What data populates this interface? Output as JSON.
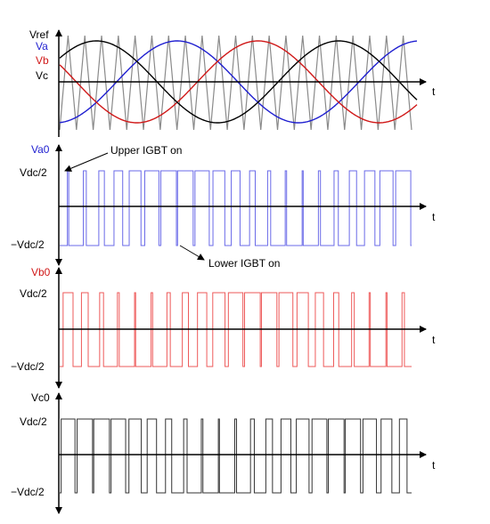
{
  "reference_plot": {
    "labels": {
      "vref": "Vref",
      "va": "Va",
      "vb": "Vb",
      "vc": "Vc",
      "time_axis": "t"
    },
    "colors": {
      "va": "#1f1fd0",
      "vb": "#d01818",
      "vc": "#000000",
      "carrier": "#8a8a8a"
    }
  },
  "va0_plot": {
    "labels": {
      "title": "Va0",
      "high": "Vdc/2",
      "low": "−Vdc/2",
      "time_axis": "t"
    },
    "color": "#6a6ae8"
  },
  "annotations": {
    "upper": "Upper IGBT on",
    "lower": "Lower IGBT on"
  },
  "vb0_plot": {
    "labels": {
      "title": "Vb0",
      "high": "Vdc/2",
      "low": "−Vdc/2",
      "time_axis": "t"
    },
    "color": "#ee5a5a"
  },
  "vc0_plot": {
    "labels": {
      "title": "Vc0",
      "high": "Vdc/2",
      "low": "−Vdc/2",
      "time_axis": "t"
    },
    "color": "#333333"
  }
}
